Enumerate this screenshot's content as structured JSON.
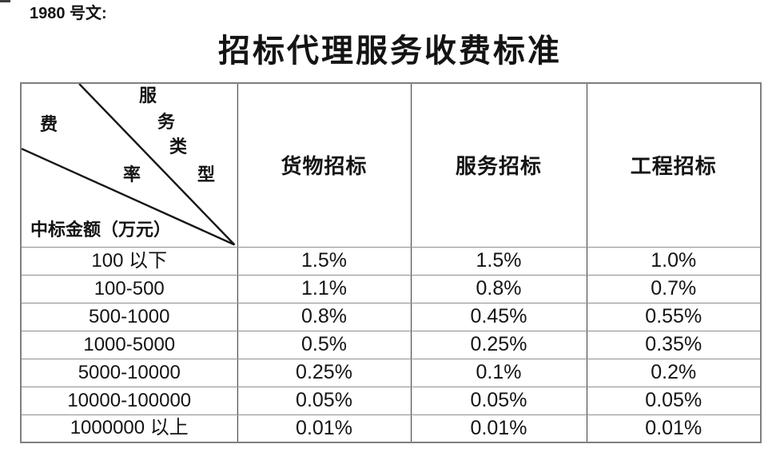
{
  "doc_label": "1980 号文:",
  "title": "招标代理服务收费标准",
  "table": {
    "corner": {
      "fee_char": "费",
      "rate_char": "率",
      "type_chars": [
        "服",
        "务",
        "类",
        "型"
      ],
      "amount_label": "中标金额（万元）"
    },
    "columns": [
      "货物招标",
      "服务招标",
      "工程招标"
    ],
    "rows": [
      {
        "range": "100 以下",
        "values": [
          "1.5%",
          "1.5%",
          "1.0%"
        ]
      },
      {
        "range": "100-500",
        "values": [
          "1.1%",
          "0.8%",
          "0.7%"
        ]
      },
      {
        "range": "500-1000",
        "values": [
          "0.8%",
          "0.45%",
          "0.55%"
        ]
      },
      {
        "range": "1000-5000",
        "values": [
          "0.5%",
          "0.25%",
          "0.35%"
        ]
      },
      {
        "range": "5000-10000",
        "values": [
          "0.25%",
          "0.1%",
          "0.2%"
        ]
      },
      {
        "range": "10000-100000",
        "values": [
          "0.05%",
          "0.05%",
          "0.05%"
        ]
      },
      {
        "range": "1000000 以上",
        "values": [
          "0.01%",
          "0.01%",
          "0.01%"
        ]
      }
    ]
  }
}
